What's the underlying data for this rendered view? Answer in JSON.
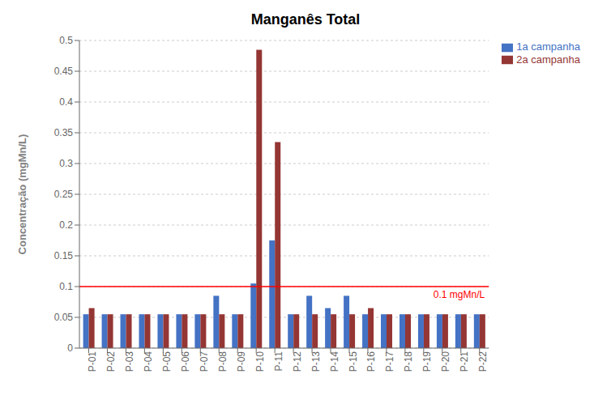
{
  "chart_data": {
    "type": "bar",
    "title": "Manganês Total",
    "y_label": "Concentração (mgMn/L)",
    "categories": [
      "P-01",
      "P-02",
      "P-03",
      "P-04",
      "P-05",
      "P-06",
      "P-07",
      "P-08",
      "P-09",
      "P-10",
      "P-11",
      "P-12",
      "P-13",
      "P-14",
      "P-15",
      "P-16",
      "P-17",
      "P-18",
      "P-19",
      "P-20",
      "P-21",
      "P-22"
    ],
    "series": [
      {
        "name": "1a campanha",
        "color": "#4472C4",
        "values": [
          0.055,
          0.055,
          0.055,
          0.055,
          0.055,
          0.055,
          0.055,
          0.085,
          0.055,
          0.105,
          0.175,
          0.055,
          0.085,
          0.065,
          0.085,
          0.055,
          0.055,
          0.055,
          0.055,
          0.055,
          0.055,
          0.055
        ]
      },
      {
        "name": "2a campanha",
        "color": "#943634",
        "values": [
          0.065,
          0.055,
          0.055,
          0.055,
          0.055,
          0.055,
          0.055,
          0.055,
          0.055,
          0.485,
          0.335,
          0.055,
          0.055,
          0.055,
          0.055,
          0.065,
          0.055,
          0.055,
          0.055,
          0.055,
          0.055,
          0.055
        ]
      }
    ],
    "ylim": [
      0,
      0.5
    ],
    "yticks": [
      0,
      0.05,
      0.1,
      0.15,
      0.2,
      0.25,
      0.3,
      0.35,
      0.4,
      0.45,
      0.5
    ],
    "grid": true,
    "legend": "upper right",
    "annotations": [
      {
        "type": "hline",
        "y": 0.1,
        "label": "0.1 mgMn/L",
        "color": "#FF0000"
      }
    ]
  }
}
